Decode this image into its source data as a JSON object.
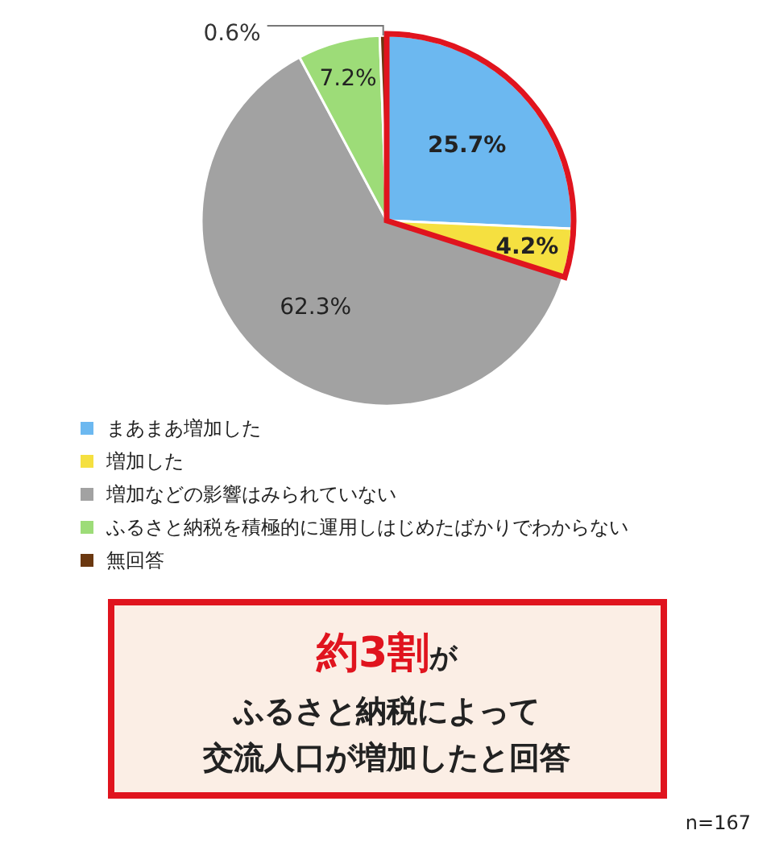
{
  "chart_data": {
    "type": "pie",
    "categories": [
      "まあまあ増加した",
      "増加した",
      "増加などの影響はみられていない",
      "ふるさと納税を積極的に運用しはじめたばかりでわからない",
      "無回答"
    ],
    "values": [
      25.7,
      4.2,
      62.3,
      7.2,
      0.6
    ],
    "colors": [
      "#6cb8f0",
      "#f5e040",
      "#a2a2a2",
      "#9ddc78",
      "#6b3810"
    ],
    "value_labels": [
      "25.7%",
      "4.2%",
      "62.3%",
      "7.2%",
      "0.6%"
    ],
    "legend": "bottom",
    "annotations": [
      "約3割が",
      "ふるさと納税によって",
      "交流人口が増加したと回答",
      "n=167"
    ]
  }
}
